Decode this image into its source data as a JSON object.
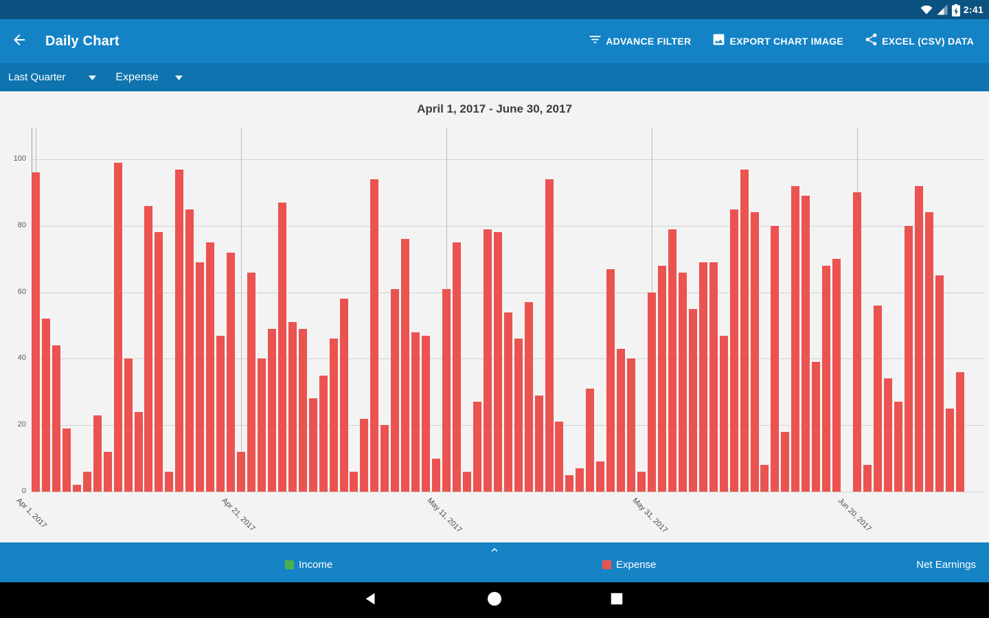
{
  "status_bar": {
    "time": "2:41",
    "icons": [
      "wifi-icon",
      "cell-signal-icon",
      "battery-charging-icon"
    ]
  },
  "app_bar": {
    "title": "Daily Chart",
    "back_icon": "arrow-back-icon",
    "actions": [
      {
        "label": "ADVANCE FILTER",
        "icon": "filter-list-icon"
      },
      {
        "label": "EXPORT CHART IMAGE",
        "icon": "image-icon"
      },
      {
        "label": "EXCEL (CSV) DATA",
        "icon": "share-icon"
      }
    ]
  },
  "filter_bar": {
    "period_selected": "Last Quarter",
    "type_selected": "Expense"
  },
  "chart_data": {
    "type": "bar",
    "title": "April 1, 2017 - June 30, 2017",
    "start_date": "April 1, 2017",
    "end_date": "June 30, 2017",
    "ylim": [
      0,
      109
    ],
    "y_ticks": [
      0,
      20,
      40,
      60,
      80,
      100
    ],
    "grid": true,
    "bar_color": "#ea5350",
    "x_ticks": [
      {
        "day_index": 0,
        "label": "Apr 1, 2017"
      },
      {
        "day_index": 20,
        "label": "Apr 21, 2017"
      },
      {
        "day_index": 40,
        "label": "May 11, 2017"
      },
      {
        "day_index": 60,
        "label": "May 31, 2017"
      },
      {
        "day_index": 80,
        "label": "Jun 20, 2017"
      }
    ],
    "series": [
      {
        "name": "Expense",
        "color": "#ea5350",
        "values": [
          96,
          52,
          44,
          19,
          2,
          6,
          23,
          12,
          99,
          40,
          24,
          86,
          78,
          6,
          97,
          85,
          69,
          75,
          47,
          72,
          12,
          66,
          40,
          49,
          87,
          51,
          49,
          28,
          35,
          46,
          58,
          6,
          22,
          94,
          20,
          61,
          76,
          48,
          47,
          10,
          61,
          75,
          6,
          27,
          79,
          78,
          54,
          46,
          57,
          29,
          94,
          21,
          5,
          7,
          31,
          9,
          67,
          43,
          40,
          6,
          60,
          68,
          79,
          66,
          55,
          69,
          69,
          47,
          85,
          97,
          84,
          8,
          80,
          18,
          92,
          89,
          39,
          68,
          70,
          0,
          90,
          8,
          56,
          34,
          27,
          80,
          92,
          84,
          65,
          25,
          36
        ]
      }
    ]
  },
  "bottom_bar": {
    "expand_icon": "chevron-up-icon",
    "legend": [
      {
        "label": "Income",
        "color": "#4caf50"
      },
      {
        "label": "Expense",
        "color": "#ea5350"
      }
    ],
    "net_earnings_label": "Net Earnings"
  },
  "nav_bar": {
    "icons": [
      "back-triangle-icon",
      "home-circle-icon",
      "recents-square-icon"
    ]
  }
}
